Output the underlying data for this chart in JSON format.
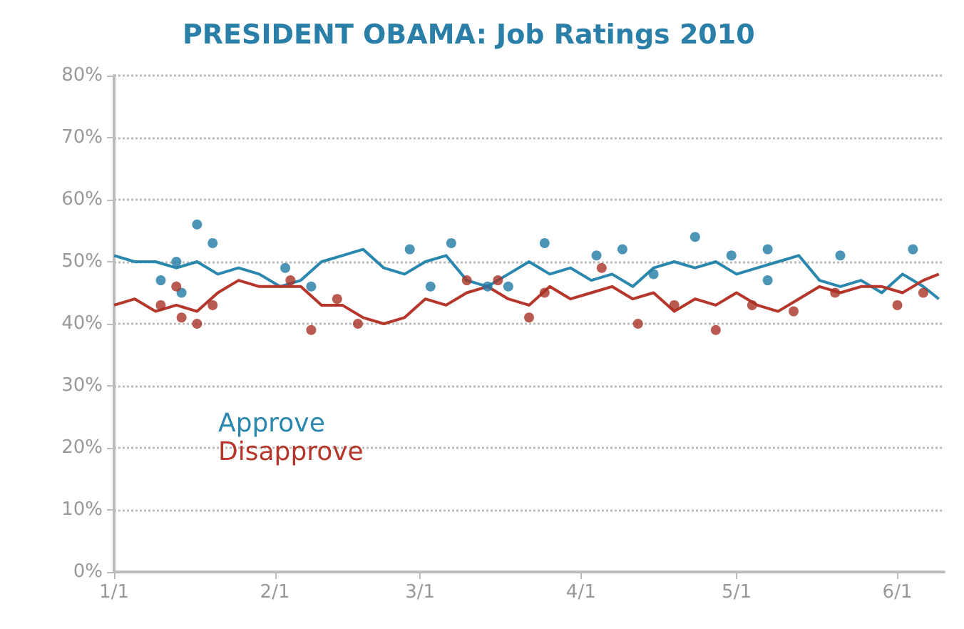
{
  "chart_data": {
    "type": "line",
    "title": "PRESIDENT OBAMA: Job Ratings 2010",
    "x": [
      "2010-01-01",
      "2010-01-05",
      "2010-01-09",
      "2010-01-13",
      "2010-01-17",
      "2010-01-21",
      "2010-01-25",
      "2010-01-29",
      "2010-02-02",
      "2010-02-06",
      "2010-02-10",
      "2010-02-14",
      "2010-02-18",
      "2010-02-22",
      "2010-02-26",
      "2010-03-02",
      "2010-03-06",
      "2010-03-10",
      "2010-03-14",
      "2010-03-18",
      "2010-03-22",
      "2010-03-26",
      "2010-03-30",
      "2010-04-03",
      "2010-04-07",
      "2010-04-11",
      "2010-04-15",
      "2010-04-19",
      "2010-04-23",
      "2010-04-27",
      "2010-05-01",
      "2010-05-05",
      "2010-05-09",
      "2010-05-13",
      "2010-05-17",
      "2010-05-21",
      "2010-05-25",
      "2010-05-29",
      "2010-06-02",
      "2010-06-06",
      "2010-06-09"
    ],
    "series": [
      {
        "name": "Approve",
        "color": "#2a87ad",
        "marker": "none",
        "values": [
          51,
          50,
          50,
          49,
          50,
          48,
          49,
          48,
          46,
          47,
          50,
          51,
          52,
          49,
          48,
          50,
          51,
          47,
          46,
          48,
          50,
          48,
          49,
          47,
          48,
          46,
          49,
          50,
          49,
          50,
          48,
          49,
          50,
          51,
          47,
          46,
          47,
          45,
          48,
          46,
          44
        ]
      },
      {
        "name": "Disapprove",
        "color": "#b5362a",
        "marker": "none",
        "values": [
          43,
          44,
          42,
          43,
          42,
          45,
          47,
          46,
          46,
          46,
          43,
          43,
          41,
          40,
          41,
          44,
          43,
          45,
          46,
          44,
          43,
          46,
          44,
          45,
          46,
          44,
          45,
          42,
          44,
          43,
          45,
          43,
          42,
          44,
          46,
          45,
          46,
          46,
          45,
          47,
          48
        ]
      },
      {
        "type": "scatter",
        "color": "#1f7aa5",
        "marker": "circle",
        "x": [
          "2010-01-10",
          "2010-01-13",
          "2010-01-14",
          "2010-01-17",
          "2010-01-20",
          "2010-02-03",
          "2010-02-08",
          "2010-02-27",
          "2010-03-03",
          "2010-03-07",
          "2010-03-14",
          "2010-03-18",
          "2010-03-25",
          "2010-04-04",
          "2010-04-09",
          "2010-04-15",
          "2010-04-23",
          "2010-04-30",
          "2010-05-07",
          "2010-05-07",
          "2010-05-21",
          "2010-06-04"
        ],
        "values": [
          47,
          50,
          45,
          56,
          53,
          49,
          46,
          52,
          46,
          53,
          46,
          46,
          53,
          51,
          52,
          48,
          54,
          51,
          52,
          47,
          51,
          52
        ]
      },
      {
        "type": "scatter",
        "color": "#a83224",
        "marker": "circle",
        "x": [
          "2010-01-10",
          "2010-01-13",
          "2010-01-14",
          "2010-01-17",
          "2010-01-20",
          "2010-02-04",
          "2010-02-08",
          "2010-02-13",
          "2010-02-17",
          "2010-03-10",
          "2010-03-16",
          "2010-03-22",
          "2010-03-25",
          "2010-04-05",
          "2010-04-12",
          "2010-04-19",
          "2010-04-27",
          "2010-05-04",
          "2010-05-12",
          "2010-05-20",
          "2010-06-01",
          "2010-06-06"
        ],
        "values": [
          43,
          46,
          41,
          40,
          43,
          47,
          39,
          44,
          40,
          47,
          47,
          41,
          45,
          49,
          40,
          43,
          39,
          43,
          42,
          45,
          43,
          45
        ]
      }
    ],
    "xlim": [
      "2010-01-01",
      "2010-06-10"
    ],
    "xticks": [
      {
        "value": "2010-01-01",
        "label": "1/1"
      },
      {
        "value": "2010-02-01",
        "label": "2/1"
      },
      {
        "value": "2010-03-01",
        "label": "3/1"
      },
      {
        "value": "2010-04-01",
        "label": "4/1"
      },
      {
        "value": "2010-05-01",
        "label": "5/1"
      },
      {
        "value": "2010-06-01",
        "label": "6/1"
      }
    ],
    "ylim": [
      0,
      80
    ],
    "yticks": [
      {
        "value": 0,
        "label": "0%"
      },
      {
        "value": 10,
        "label": "10%"
      },
      {
        "value": 20,
        "label": "20%"
      },
      {
        "value": 30,
        "label": "30%"
      },
      {
        "value": 40,
        "label": "40%"
      },
      {
        "value": 50,
        "label": "50%"
      },
      {
        "value": 60,
        "label": "60%"
      },
      {
        "value": 70,
        "label": "70%"
      },
      {
        "value": 80,
        "label": "80%"
      }
    ],
    "grid": "y",
    "legend": "left"
  }
}
